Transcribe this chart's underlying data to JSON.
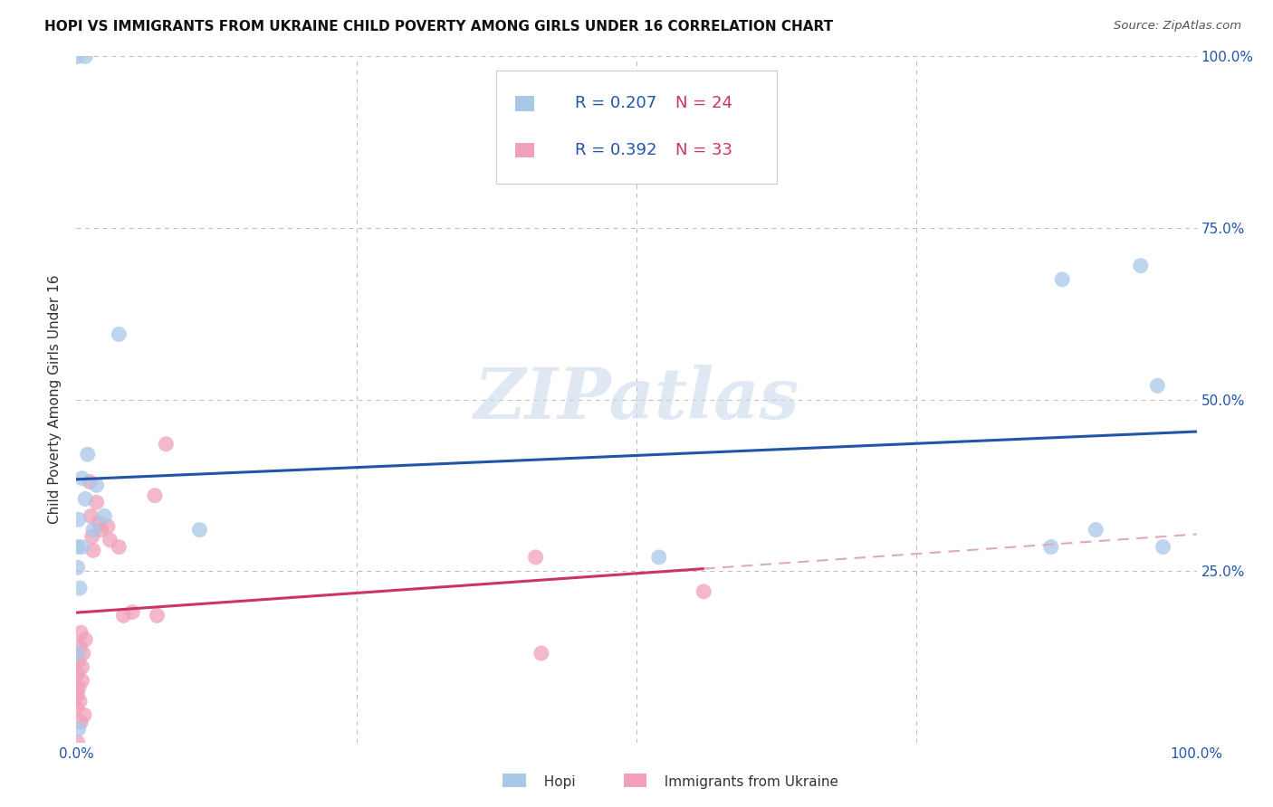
{
  "title": "HOPI VS IMMIGRANTS FROM UKRAINE CHILD POVERTY AMONG GIRLS UNDER 16 CORRELATION CHART",
  "source": "Source: ZipAtlas.com",
  "ylabel": "Child Poverty Among Girls Under 16",
  "xlim": [
    0,
    1.0
  ],
  "ylim": [
    0,
    1.0
  ],
  "hopi_color": "#a8c8e8",
  "hopi_line_color": "#2255aa",
  "ukraine_color": "#f0a0b8",
  "ukraine_line_color": "#cc3366",
  "ukraine_dashed_color": "#ddaabb",
  "watermark": "ZIPatlas",
  "hopi_x": [
    0.005,
    0.018,
    0.008,
    0.002,
    0.001,
    0.001,
    0.003,
    0.025,
    0.015,
    0.002,
    0.001,
    0.001,
    0.008,
    0.01,
    0.005,
    0.038,
    0.11,
    0.52,
    0.87,
    0.88,
    0.95,
    0.965,
    0.97,
    0.91
  ],
  "hopi_y": [
    0.385,
    0.375,
    0.355,
    0.325,
    0.285,
    0.255,
    0.225,
    0.33,
    0.31,
    0.02,
    0.13,
    1.0,
    1.0,
    0.42,
    0.285,
    0.595,
    0.31,
    0.27,
    0.285,
    0.675,
    0.695,
    0.52,
    0.285,
    0.31
  ],
  "ukraine_x": [
    0.0,
    0.001,
    0.001,
    0.002,
    0.002,
    0.003,
    0.003,
    0.004,
    0.004,
    0.005,
    0.005,
    0.006,
    0.007,
    0.008,
    0.001,
    0.012,
    0.013,
    0.014,
    0.015,
    0.018,
    0.02,
    0.022,
    0.028,
    0.03,
    0.038,
    0.042,
    0.05,
    0.07,
    0.072,
    0.08,
    0.41,
    0.415,
    0.56
  ],
  "ukraine_y": [
    0.05,
    0.07,
    0.1,
    0.08,
    0.12,
    0.06,
    0.14,
    0.03,
    0.16,
    0.09,
    0.11,
    0.13,
    0.04,
    0.15,
    0.0,
    0.38,
    0.33,
    0.3,
    0.28,
    0.35,
    0.32,
    0.31,
    0.315,
    0.295,
    0.285,
    0.185,
    0.19,
    0.36,
    0.185,
    0.435,
    0.27,
    0.13,
    0.22
  ],
  "legend_text": [
    [
      "R = 0.207",
      "N = 24"
    ],
    [
      "R = 0.392",
      "N = 33"
    ]
  ],
  "r_color": "#2255aa",
  "n_color": "#cc3366"
}
